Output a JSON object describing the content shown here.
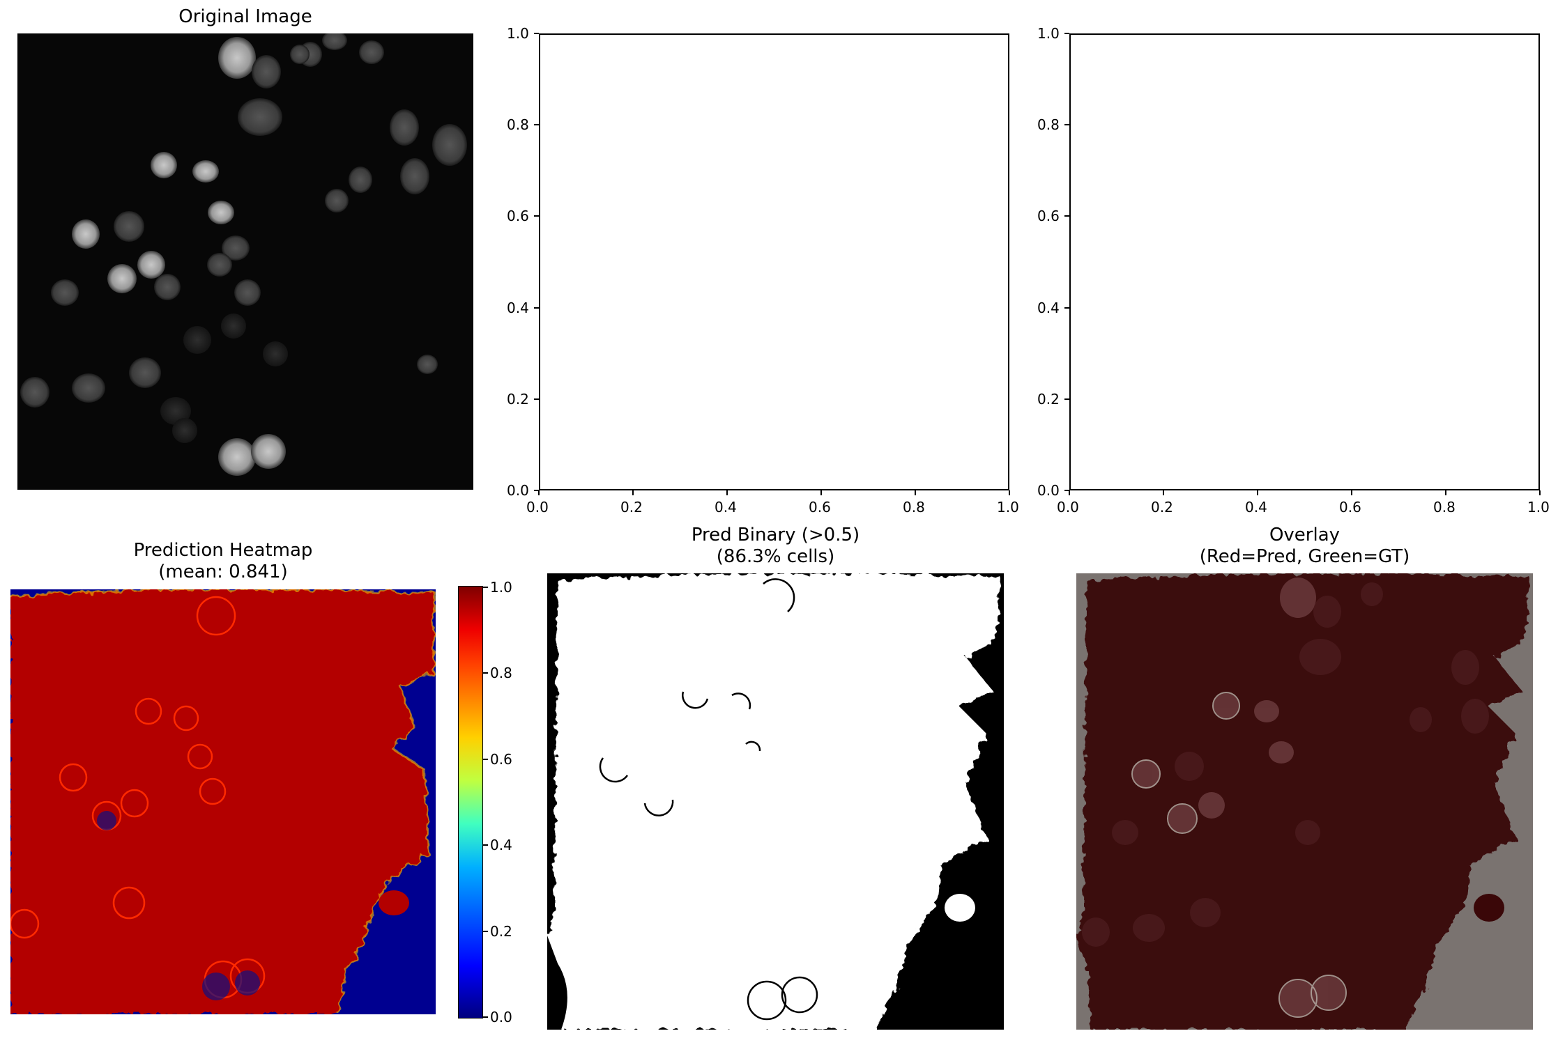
{
  "figure": {
    "panels": [
      {
        "id": "original",
        "title": "Original Image",
        "subtitle": ""
      },
      {
        "id": "empty1",
        "title": "",
        "subtitle": ""
      },
      {
        "id": "empty2",
        "title": "",
        "subtitle": ""
      },
      {
        "id": "heatmap",
        "title": "Prediction Heatmap",
        "subtitle": "(mean: 0.841)"
      },
      {
        "id": "binary",
        "title": "Pred Binary (>0.5)",
        "subtitle": "(86.3% cells)"
      },
      {
        "id": "overlay",
        "title": "Overlay",
        "subtitle": "(Red=Pred, Green=GT)"
      }
    ]
  },
  "colors": {
    "heat_high": "#b30000",
    "heat_low": "#000090",
    "overlay_bg": "#7a7370",
    "overlay_red": "#3a0708",
    "binary_on": "#ffffff",
    "binary_off": "#000000"
  },
  "chart_data": [
    {
      "type": "heatmap",
      "panel": "original",
      "title": "Original Image",
      "description_colormap": "gray"
    },
    {
      "type": "scatter",
      "panel": "empty1",
      "title": "",
      "xlim": [
        0.0,
        1.0
      ],
      "ylim": [
        0.0,
        1.0
      ],
      "xticks": [
        "0.0",
        "0.2",
        "0.4",
        "0.6",
        "0.8",
        "1.0"
      ],
      "yticks": [
        "0.0",
        "0.2",
        "0.4",
        "0.6",
        "0.8",
        "1.0"
      ],
      "series": []
    },
    {
      "type": "scatter",
      "panel": "empty2",
      "title": "",
      "xlim": [
        0.0,
        1.0
      ],
      "ylim": [
        0.0,
        1.0
      ],
      "xticks": [
        "0.0",
        "0.2",
        "0.4",
        "0.6",
        "0.8",
        "1.0"
      ],
      "yticks": [
        "0.0",
        "0.2",
        "0.4",
        "0.6",
        "0.8",
        "1.0"
      ],
      "series": []
    },
    {
      "type": "heatmap",
      "panel": "heatmap",
      "title": "Prediction Heatmap\n(mean: 0.841)",
      "colorbar_range": [
        0.0,
        1.0
      ],
      "colorbar_ticks": [
        "0.0",
        "0.2",
        "0.4",
        "0.6",
        "0.8",
        "1.0"
      ],
      "mean": 0.841
    },
    {
      "type": "heatmap",
      "panel": "binary",
      "title": "Pred Binary (>0.5)\n(86.3% cells)",
      "threshold": 0.5,
      "cell_fraction_percent": 86.3
    },
    {
      "type": "heatmap",
      "panel": "overlay",
      "title": "Overlay\n(Red=Pred, Green=GT)"
    }
  ]
}
